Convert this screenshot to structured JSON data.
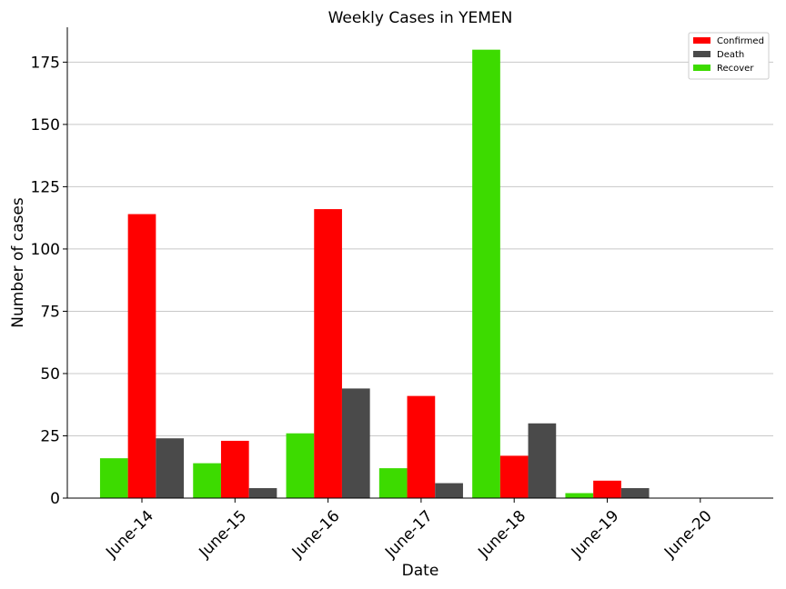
{
  "chart_data": {
    "type": "bar",
    "title": "Weekly Cases in YEMEN",
    "xlabel": "Date",
    "ylabel": "Number of cases",
    "categories": [
      "June-14",
      "June-15",
      "June-16",
      "June-17",
      "June-18",
      "June-19",
      "June-20"
    ],
    "series": [
      {
        "name": "Recover",
        "color": "#3ddb00",
        "values": [
          16,
          14,
          26,
          12,
          180,
          2,
          0
        ]
      },
      {
        "name": "Confirmed",
        "color": "#ff0000",
        "values": [
          114,
          23,
          116,
          41,
          17,
          7,
          0
        ]
      },
      {
        "name": "Death",
        "color": "#4a4a4a",
        "values": [
          24,
          4,
          44,
          6,
          30,
          4,
          0
        ]
      }
    ],
    "legend_order": [
      "Confirmed",
      "Death",
      "Recover"
    ],
    "yticks": [
      0,
      25,
      50,
      75,
      100,
      125,
      150,
      175
    ],
    "ylim": [
      0,
      189
    ],
    "grid": "horizontal",
    "legend_position": "top-right"
  }
}
